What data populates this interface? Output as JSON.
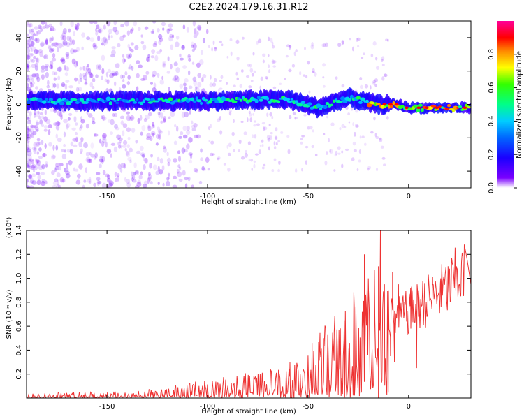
{
  "title": "C2E2.2024.179.16.31.R12",
  "colors": {
    "snr_line": "#ee3333",
    "colormap": [
      "#ffffff",
      "#6600ff",
      "#0000ff",
      "#00ccff",
      "#00ff88",
      "#44ff00",
      "#ffff00",
      "#ff8800",
      "#ff0000",
      "#ff0099"
    ]
  },
  "chart_data": [
    {
      "type": "heatmap",
      "title": "C2E2.2024.179.16.31.R12",
      "xlabel": "Height of straight line (km)",
      "ylabel": "Frequency (Hz)",
      "xlim": [
        -190,
        31
      ],
      "ylim": [
        -50,
        50
      ],
      "x_ticks": [
        "-150",
        "-100",
        "-50",
        "0"
      ],
      "x_tick_values": [
        -150,
        -100,
        -50,
        0
      ],
      "y_ticks": [
        "40",
        "20",
        "0",
        "-20",
        "-40"
      ],
      "y_tick_values": [
        40,
        20,
        0,
        -20,
        -40
      ],
      "colorbar": {
        "label": "Normalized spectral amplitude",
        "range": [
          0,
          1
        ],
        "ticks": [
          "0.0",
          "0.2",
          "0.4",
          "0.6",
          "0.8"
        ],
        "tick_values": [
          0.0,
          0.2,
          0.4,
          0.6,
          0.8
        ]
      },
      "band_center_hz": [
        {
          "x": -190,
          "y": 2
        },
        {
          "x": -150,
          "y": 2
        },
        {
          "x": -100,
          "y": 2
        },
        {
          "x": -60,
          "y": 3
        },
        {
          "x": -45,
          "y": -2
        },
        {
          "x": -30,
          "y": 4
        },
        {
          "x": -20,
          "y": 1
        },
        {
          "x": -15,
          "y": 0
        },
        {
          "x": -5,
          "y": 0
        },
        {
          "x": 0,
          "y": -2
        },
        {
          "x": 31,
          "y": -2
        }
      ]
    },
    {
      "type": "line",
      "xlabel": "Height of straight line (km)",
      "ylabel": "SNR (10 * v/v)",
      "y_multiplier": "(x10⁴)",
      "xlim": [
        -190,
        31
      ],
      "ylim": [
        0,
        1.4
      ],
      "x_ticks": [
        "-150",
        "-100",
        "-50",
        "0"
      ],
      "x_tick_values": [
        -150,
        -100,
        -50,
        0
      ],
      "y_ticks": [
        "0.2",
        "0.4",
        "0.6",
        "0.8",
        "1.0",
        "1.2",
        "1.4"
      ],
      "y_tick_values": [
        0.2,
        0.4,
        0.6,
        0.8,
        1.0,
        1.2,
        1.4
      ],
      "series": [
        {
          "points": [
            [
              -190,
              0.02
            ],
            [
              -180,
              0.025
            ],
            [
              -170,
              0.025
            ],
            [
              -160,
              0.03
            ],
            [
              -150,
              0.03
            ],
            [
              -140,
              0.03
            ],
            [
              -130,
              0.04
            ],
            [
              -120,
              0.05
            ],
            [
              -110,
              0.07
            ],
            [
              -100,
              0.09
            ],
            [
              -90,
              0.1
            ],
            [
              -80,
              0.12
            ],
            [
              -70,
              0.13
            ],
            [
              -60,
              0.15
            ],
            [
              -50,
              0.2
            ],
            [
              -45,
              0.3
            ],
            [
              -40,
              0.4
            ],
            [
              -35,
              0.45
            ],
            [
              -30,
              0.5
            ],
            [
              -25,
              0.55
            ],
            [
              -20,
              0.6
            ],
            [
              -15,
              0.6
            ],
            [
              -10,
              0.65
            ],
            [
              -5,
              0.65
            ],
            [
              0,
              0.7
            ],
            [
              5,
              0.75
            ],
            [
              10,
              0.8
            ],
            [
              15,
              0.85
            ],
            [
              20,
              0.9
            ],
            [
              25,
              1.0
            ],
            [
              28,
              1.0
            ]
          ],
          "peaks": [
            [
              -59,
              0.3
            ],
            [
              -48,
              0.46
            ],
            [
              -44,
              0.4
            ],
            [
              -42,
              0.5
            ],
            [
              -37,
              0.55
            ],
            [
              -32,
              0.65
            ],
            [
              -27,
              0.75
            ],
            [
              -22,
              1.2
            ],
            [
              -20,
              1.0
            ],
            [
              -17,
              1.07
            ],
            [
              -15,
              1.1
            ],
            [
              -14,
              1.4
            ],
            [
              -12,
              0.95
            ],
            [
              -10,
              0.9
            ],
            [
              -8,
              1.05
            ],
            [
              -5,
              0.95
            ],
            [
              -2,
              0.8
            ],
            [
              1,
              0.92
            ],
            [
              5,
              0.9
            ],
            [
              8,
              0.96
            ],
            [
              12,
              0.95
            ],
            [
              16,
              1.0
            ],
            [
              20,
              1.05
            ],
            [
              24,
              1.08
            ],
            [
              29,
              1.17
            ],
            [
              31,
              0.95
            ]
          ],
          "dips": [
            [
              -15,
              0.0
            ],
            [
              -9,
              0.35
            ],
            [
              -7,
              0.3
            ],
            [
              4,
              0.25
            ]
          ]
        }
      ]
    }
  ]
}
